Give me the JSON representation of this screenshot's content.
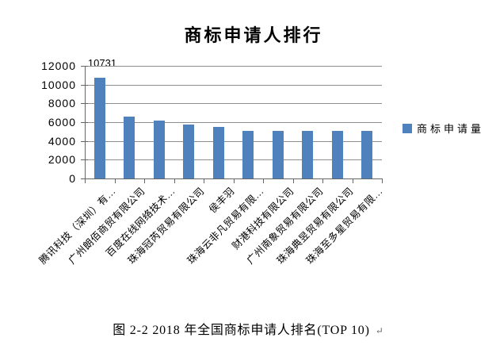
{
  "chart_data": {
    "type": "bar",
    "title": "商标申请人排行",
    "categories": [
      "腾讯科技（深圳）有…",
      "广州朗佰商贸有限公司",
      "百度在线网络技术…",
      "珠海冠芮贸易有限公司",
      "侯丰羽",
      "珠海云非凡贸易有限…",
      "财港科技有限公司",
      "广州南象贸易有限公司",
      "珠海典昱贸易有限公司",
      "珠海至多星贸易有限…"
    ],
    "series": [
      {
        "name": "商标申请量",
        "values": [
          10731,
          6600,
          6150,
          5760,
          5480,
          5080,
          5080,
          5030,
          5030,
          5030
        ]
      }
    ],
    "first_bar_label": "10731",
    "ylim": [
      0,
      12000
    ],
    "ytick_step": 2000,
    "yticks": [
      "12000",
      "10000",
      "8000",
      "6000",
      "4000",
      "2000",
      "0"
    ],
    "grid": true,
    "legend_position": "right",
    "bar_color": "#4F81BD"
  },
  "caption": {
    "text": "图 2-2 2018 年全国商标申请人排名(TOP 10)",
    "paragraph_mark": "↵"
  },
  "colors": {
    "bar": "#4F81BD",
    "gridline": "#8E8E8E",
    "axis": "#666666",
    "text": "#000000",
    "caption_mark": "#666666"
  }
}
